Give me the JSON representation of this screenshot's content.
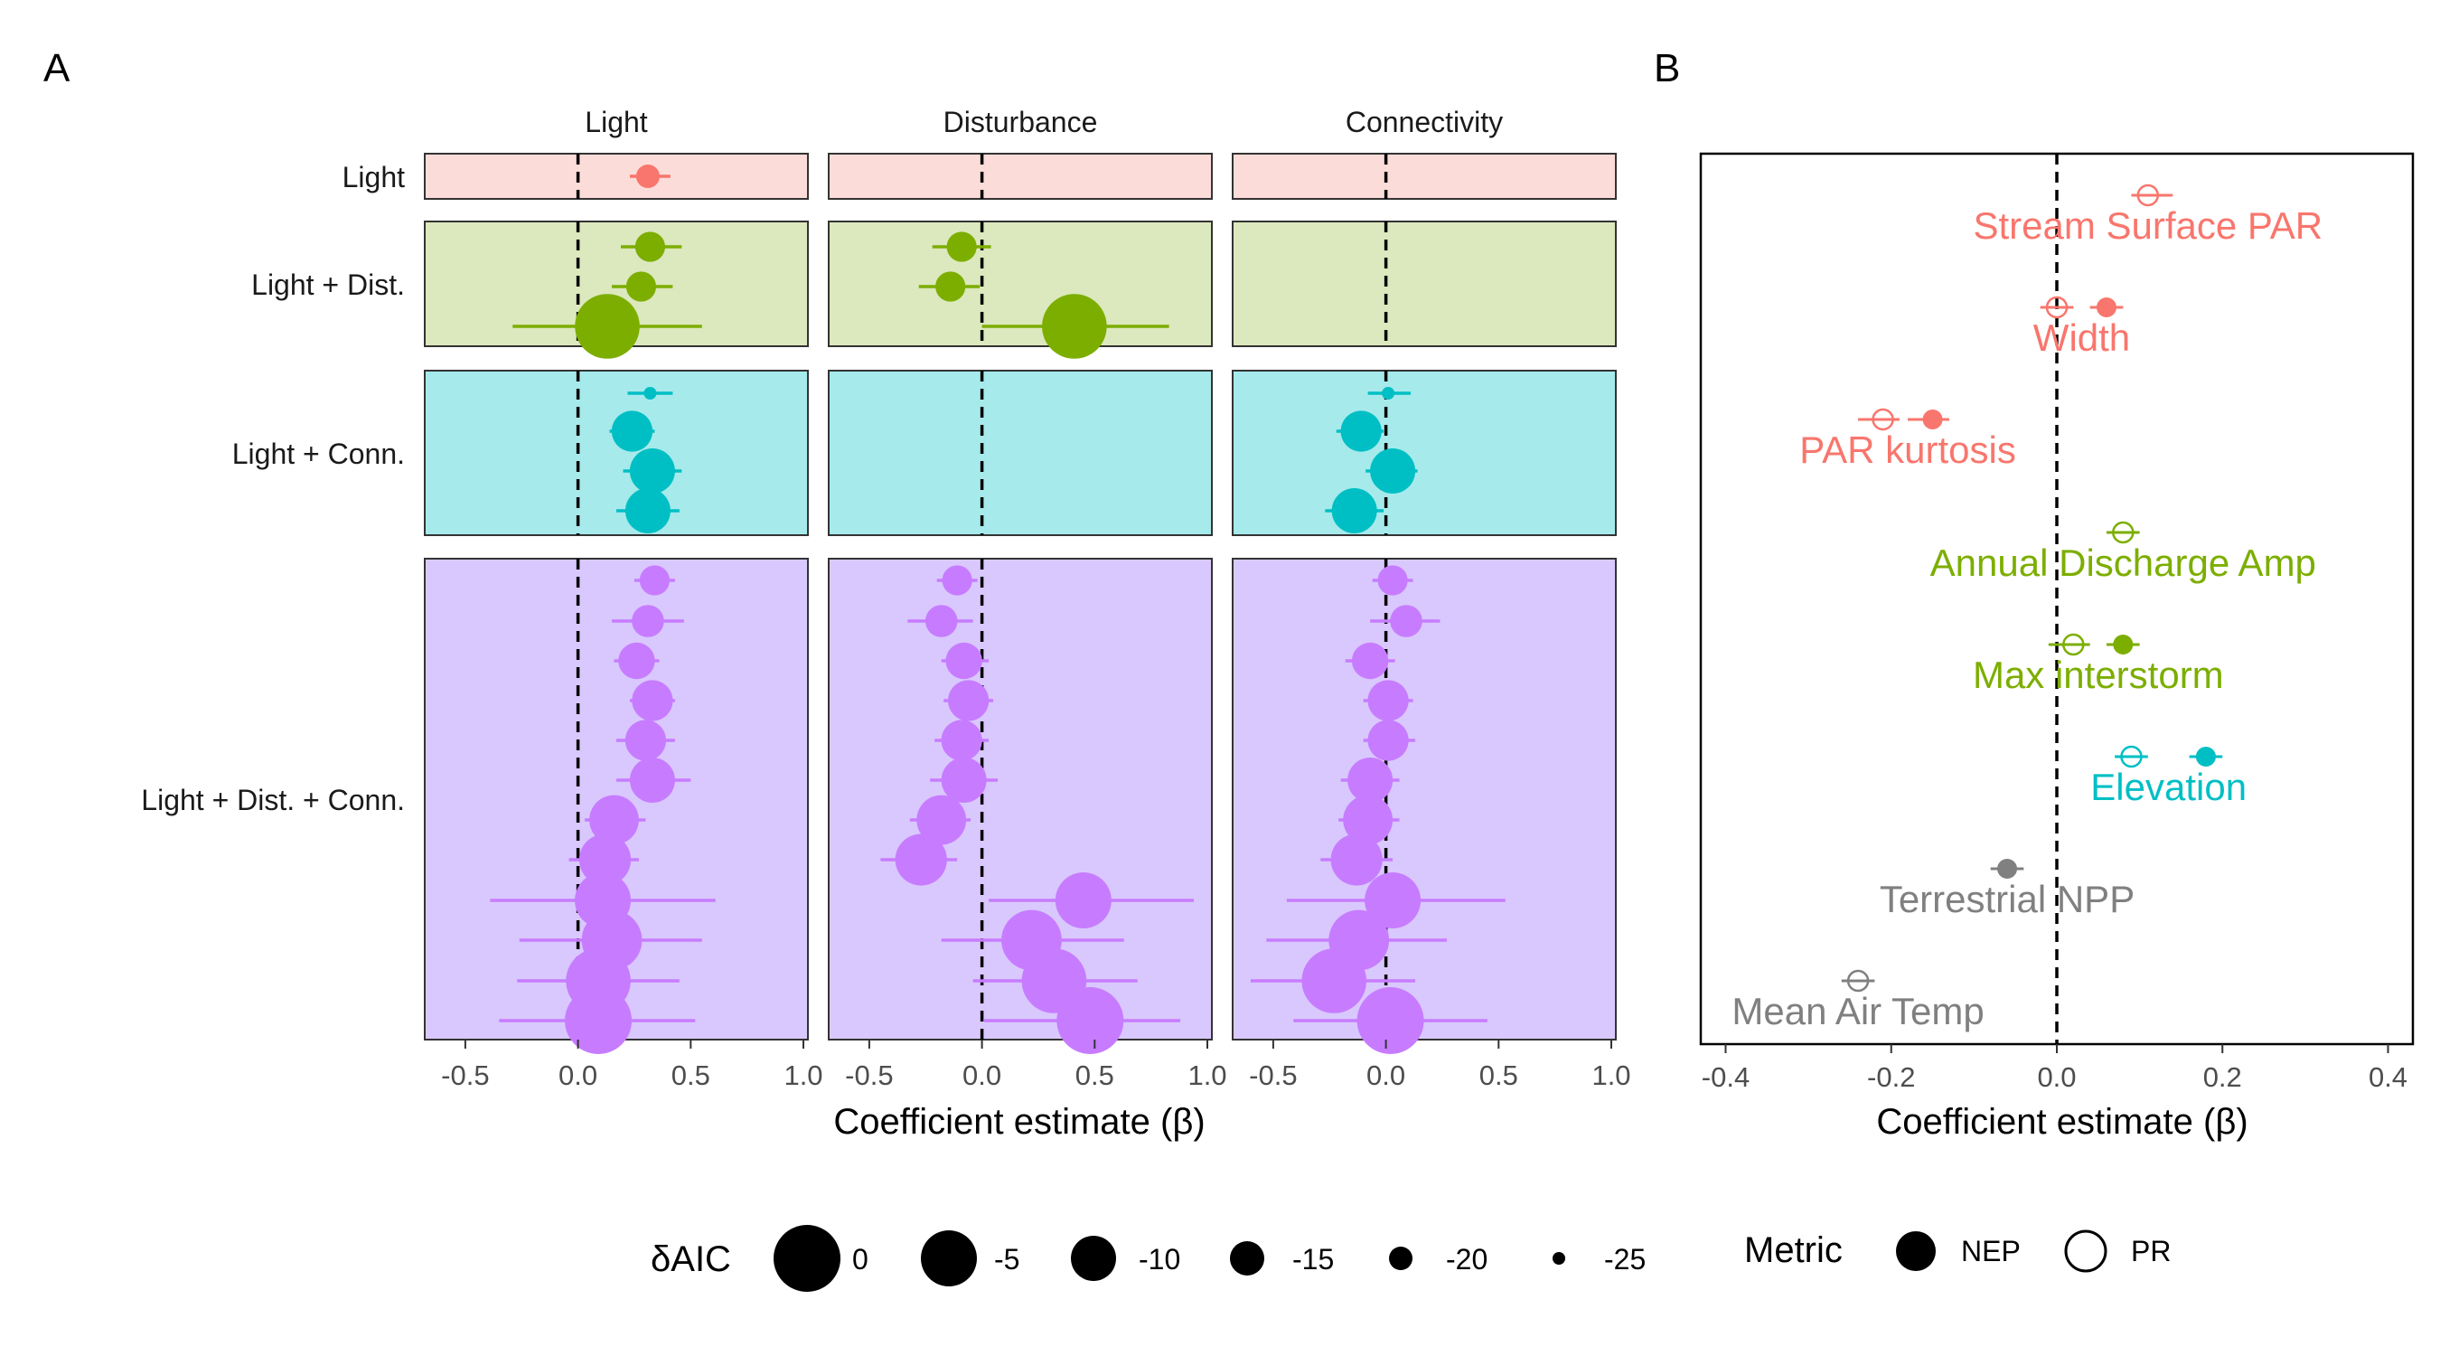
{
  "panel_labels": {
    "a": "A",
    "b": "B"
  },
  "colors": {
    "light": "#F8766D",
    "dist": "#7CAE00",
    "conn": "#00BFC4",
    "all": "#C77CFF",
    "other": "#808080",
    "bg_light": "#FCDCD9",
    "bg_dist": "#DCE8BD",
    "bg_conn": "#A6EAEB",
    "bg_all": "#D9C8FD"
  },
  "chart_data": [
    {
      "type": "scatter",
      "title": "",
      "xlabel": "Coefficient estimate (β)",
      "ylabel": "",
      "xlim": [
        -0.68,
        1.02
      ],
      "x_ticks": [
        -0.5,
        0.0,
        0.5,
        1.0
      ],
      "x_tick_labels": [
        "-0.5",
        "0.0",
        "0.5",
        "1.0"
      ],
      "reference_line": 0,
      "columns": [
        "Light",
        "Disturbance",
        "Connectivity"
      ],
      "rows": [
        {
          "label": "Light",
          "bg": "bg_light",
          "color": "light",
          "n": 1
        },
        {
          "label": "Light + Dist.",
          "bg": "bg_dist",
          "color": "dist",
          "n": 3
        },
        {
          "label": "Light + Conn.",
          "bg": "bg_conn",
          "color": "conn",
          "n": 4
        },
        {
          "label": "Light + Dist. + Conn.",
          "bg": "bg_all",
          "color": "all",
          "n": 12
        }
      ],
      "estimates": [
        {
          "row": 0,
          "col": 0,
          "slot": 0,
          "x": 0.31,
          "lo": 0.23,
          "hi": 0.41,
          "daic": -20
        },
        {
          "row": 1,
          "col": 0,
          "slot": 0,
          "x": 0.32,
          "lo": 0.19,
          "hi": 0.46,
          "daic": -17
        },
        {
          "row": 1,
          "col": 0,
          "slot": 1,
          "x": 0.28,
          "lo": 0.15,
          "hi": 0.42,
          "daic": -17
        },
        {
          "row": 1,
          "col": 0,
          "slot": 2,
          "x": 0.13,
          "lo": -0.29,
          "hi": 0.55,
          "daic": -1
        },
        {
          "row": 1,
          "col": 1,
          "slot": 0,
          "x": -0.09,
          "lo": -0.22,
          "hi": 0.04,
          "daic": -17
        },
        {
          "row": 1,
          "col": 1,
          "slot": 1,
          "x": -0.14,
          "lo": -0.28,
          "hi": -0.01,
          "daic": -17
        },
        {
          "row": 1,
          "col": 1,
          "slot": 2,
          "x": 0.41,
          "lo": 0.0,
          "hi": 0.83,
          "daic": -1
        },
        {
          "row": 2,
          "col": 0,
          "slot": 0,
          "x": 0.32,
          "lo": 0.22,
          "hi": 0.42,
          "daic": -25
        },
        {
          "row": 2,
          "col": 0,
          "slot": 1,
          "x": 0.24,
          "lo": 0.14,
          "hi": 0.34,
          "daic": -12
        },
        {
          "row": 2,
          "col": 0,
          "slot": 2,
          "x": 0.33,
          "lo": 0.2,
          "hi": 0.46,
          "daic": -10
        },
        {
          "row": 2,
          "col": 0,
          "slot": 3,
          "x": 0.31,
          "lo": 0.17,
          "hi": 0.45,
          "daic": -10
        },
        {
          "row": 2,
          "col": 2,
          "slot": 0,
          "x": 0.01,
          "lo": -0.08,
          "hi": 0.11,
          "daic": -25
        },
        {
          "row": 2,
          "col": 2,
          "slot": 1,
          "x": -0.11,
          "lo": -0.22,
          "hi": -0.01,
          "daic": -12
        },
        {
          "row": 2,
          "col": 2,
          "slot": 2,
          "x": 0.03,
          "lo": -0.09,
          "hi": 0.14,
          "daic": -10
        },
        {
          "row": 2,
          "col": 2,
          "slot": 3,
          "x": -0.14,
          "lo": -0.27,
          "hi": -0.01,
          "daic": -10
        },
        {
          "row": 3,
          "col": 0,
          "slot": 0,
          "x": 0.34,
          "lo": 0.25,
          "hi": 0.43,
          "daic": -17
        },
        {
          "row": 3,
          "col": 0,
          "slot": 1,
          "x": 0.31,
          "lo": 0.15,
          "hi": 0.47,
          "daic": -16
        },
        {
          "row": 3,
          "col": 0,
          "slot": 2,
          "x": 0.26,
          "lo": 0.16,
          "hi": 0.36,
          "daic": -14
        },
        {
          "row": 3,
          "col": 0,
          "slot": 3,
          "x": 0.33,
          "lo": 0.23,
          "hi": 0.43,
          "daic": -12
        },
        {
          "row": 3,
          "col": 0,
          "slot": 4,
          "x": 0.3,
          "lo": 0.17,
          "hi": 0.43,
          "daic": -12
        },
        {
          "row": 3,
          "col": 0,
          "slot": 5,
          "x": 0.33,
          "lo": 0.17,
          "hi": 0.5,
          "daic": -10
        },
        {
          "row": 3,
          "col": 0,
          "slot": 6,
          "x": 0.16,
          "lo": 0.03,
          "hi": 0.3,
          "daic": -8
        },
        {
          "row": 3,
          "col": 0,
          "slot": 7,
          "x": 0.12,
          "lo": -0.04,
          "hi": 0.27,
          "daic": -7
        },
        {
          "row": 3,
          "col": 0,
          "slot": 8,
          "x": 0.11,
          "lo": -0.39,
          "hi": 0.61,
          "daic": -5
        },
        {
          "row": 3,
          "col": 0,
          "slot": 9,
          "x": 0.15,
          "lo": -0.26,
          "hi": 0.55,
          "daic": -3
        },
        {
          "row": 3,
          "col": 0,
          "slot": 10,
          "x": 0.09,
          "lo": -0.27,
          "hi": 0.45,
          "daic": -1
        },
        {
          "row": 3,
          "col": 0,
          "slot": 11,
          "x": 0.09,
          "lo": -0.35,
          "hi": 0.52,
          "daic": 0
        },
        {
          "row": 3,
          "col": 1,
          "slot": 0,
          "x": -0.11,
          "lo": -0.2,
          "hi": -0.02,
          "daic": -17
        },
        {
          "row": 3,
          "col": 1,
          "slot": 1,
          "x": -0.18,
          "lo": -0.33,
          "hi": -0.04,
          "daic": -16
        },
        {
          "row": 3,
          "col": 1,
          "slot": 2,
          "x": -0.08,
          "lo": -0.18,
          "hi": 0.03,
          "daic": -14
        },
        {
          "row": 3,
          "col": 1,
          "slot": 3,
          "x": -0.06,
          "lo": -0.17,
          "hi": 0.05,
          "daic": -12
        },
        {
          "row": 3,
          "col": 1,
          "slot": 4,
          "x": -0.09,
          "lo": -0.21,
          "hi": 0.03,
          "daic": -12
        },
        {
          "row": 3,
          "col": 1,
          "slot": 5,
          "x": -0.08,
          "lo": -0.23,
          "hi": 0.07,
          "daic": -10
        },
        {
          "row": 3,
          "col": 1,
          "slot": 6,
          "x": -0.18,
          "lo": -0.32,
          "hi": -0.05,
          "daic": -8
        },
        {
          "row": 3,
          "col": 1,
          "slot": 7,
          "x": -0.27,
          "lo": -0.45,
          "hi": -0.11,
          "daic": -7
        },
        {
          "row": 3,
          "col": 1,
          "slot": 8,
          "x": 0.45,
          "lo": 0.03,
          "hi": 0.94,
          "daic": -5
        },
        {
          "row": 3,
          "col": 1,
          "slot": 9,
          "x": 0.22,
          "lo": -0.18,
          "hi": 0.63,
          "daic": -3
        },
        {
          "row": 3,
          "col": 1,
          "slot": 10,
          "x": 0.32,
          "lo": -0.04,
          "hi": 0.69,
          "daic": -1
        },
        {
          "row": 3,
          "col": 1,
          "slot": 11,
          "x": 0.48,
          "lo": 0.01,
          "hi": 0.88,
          "daic": 0
        },
        {
          "row": 3,
          "col": 2,
          "slot": 0,
          "x": 0.03,
          "lo": -0.06,
          "hi": 0.12,
          "daic": -17
        },
        {
          "row": 3,
          "col": 2,
          "slot": 1,
          "x": 0.09,
          "lo": -0.07,
          "hi": 0.24,
          "daic": -16
        },
        {
          "row": 3,
          "col": 2,
          "slot": 2,
          "x": -0.07,
          "lo": -0.18,
          "hi": 0.04,
          "daic": -14
        },
        {
          "row": 3,
          "col": 2,
          "slot": 3,
          "x": 0.01,
          "lo": -0.1,
          "hi": 0.12,
          "daic": -12
        },
        {
          "row": 3,
          "col": 2,
          "slot": 4,
          "x": 0.01,
          "lo": -0.1,
          "hi": 0.13,
          "daic": -12
        },
        {
          "row": 3,
          "col": 2,
          "slot": 5,
          "x": -0.07,
          "lo": -0.2,
          "hi": 0.06,
          "daic": -10
        },
        {
          "row": 3,
          "col": 2,
          "slot": 6,
          "x": -0.08,
          "lo": -0.21,
          "hi": 0.06,
          "daic": -8
        },
        {
          "row": 3,
          "col": 2,
          "slot": 7,
          "x": -0.13,
          "lo": -0.29,
          "hi": 0.03,
          "daic": -7
        },
        {
          "row": 3,
          "col": 2,
          "slot": 8,
          "x": 0.03,
          "lo": -0.44,
          "hi": 0.53,
          "daic": -5
        },
        {
          "row": 3,
          "col": 2,
          "slot": 9,
          "x": -0.12,
          "lo": -0.53,
          "hi": 0.27,
          "daic": -3
        },
        {
          "row": 3,
          "col": 2,
          "slot": 10,
          "x": -0.23,
          "lo": -0.6,
          "hi": 0.13,
          "daic": -1
        },
        {
          "row": 3,
          "col": 2,
          "slot": 11,
          "x": 0.02,
          "lo": -0.41,
          "hi": 0.45,
          "daic": 0
        }
      ]
    },
    {
      "type": "scatter",
      "title": "",
      "xlabel": "Coefficient estimate (β)",
      "ylabel": "",
      "xlim": [
        -0.43,
        0.43
      ],
      "x_ticks": [
        -0.4,
        -0.2,
        0.0,
        0.2,
        0.4
      ],
      "x_tick_labels": [
        "-0.4",
        "-0.2",
        "0.0",
        "0.2",
        "0.4"
      ],
      "reference_line": 0,
      "variables": [
        {
          "label": "Stream Surface PAR",
          "color": "light",
          "points": [
            {
              "metric": "PR",
              "x": 0.11,
              "lo": 0.09,
              "hi": 0.14
            }
          ]
        },
        {
          "label": "Width",
          "color": "light",
          "points": [
            {
              "metric": "PR",
              "x": 0.0,
              "lo": -0.02,
              "hi": 0.02
            },
            {
              "metric": "NEP",
              "x": 0.06,
              "lo": 0.04,
              "hi": 0.08
            }
          ]
        },
        {
          "label": "PAR kurtosis",
          "color": "light",
          "points": [
            {
              "metric": "PR",
              "x": -0.21,
              "lo": -0.24,
              "hi": -0.19
            },
            {
              "metric": "NEP",
              "x": -0.15,
              "lo": -0.18,
              "hi": -0.13
            }
          ]
        },
        {
          "label": "Annual Discharge Amp",
          "color": "dist",
          "points": [
            {
              "metric": "PR",
              "x": 0.08,
              "lo": 0.06,
              "hi": 0.1
            }
          ]
        },
        {
          "label": "Max interstorm",
          "color": "dist",
          "points": [
            {
              "metric": "PR",
              "x": 0.02,
              "lo": -0.01,
              "hi": 0.04
            },
            {
              "metric": "NEP",
              "x": 0.08,
              "lo": 0.06,
              "hi": 0.1
            }
          ]
        },
        {
          "label": "Elevation",
          "color": "conn",
          "points": [
            {
              "metric": "PR",
              "x": 0.09,
              "lo": 0.07,
              "hi": 0.11
            },
            {
              "metric": "NEP",
              "x": 0.18,
              "lo": 0.16,
              "hi": 0.2
            }
          ]
        },
        {
          "label": "Terrestrial NPP",
          "color": "other",
          "points": [
            {
              "metric": "NEP",
              "x": -0.06,
              "lo": -0.08,
              "hi": -0.04
            }
          ]
        },
        {
          "label": "Mean Air Temp",
          "color": "other",
          "points": [
            {
              "metric": "PR",
              "x": -0.24,
              "lo": -0.26,
              "hi": -0.22
            }
          ]
        }
      ]
    }
  ],
  "legend": {
    "size_title": "δAIC",
    "size_items": [
      {
        "label": "0",
        "value": 0
      },
      {
        "label": "-5",
        "value": -5
      },
      {
        "label": "-10",
        "value": -10
      },
      {
        "label": "-15",
        "value": -15
      },
      {
        "label": "-20",
        "value": -20
      },
      {
        "label": "-25",
        "value": -25
      }
    ],
    "metric_title": "Metric",
    "metric_items": [
      {
        "label": "NEP",
        "filled": true
      },
      {
        "label": "PR",
        "filled": false
      }
    ]
  }
}
